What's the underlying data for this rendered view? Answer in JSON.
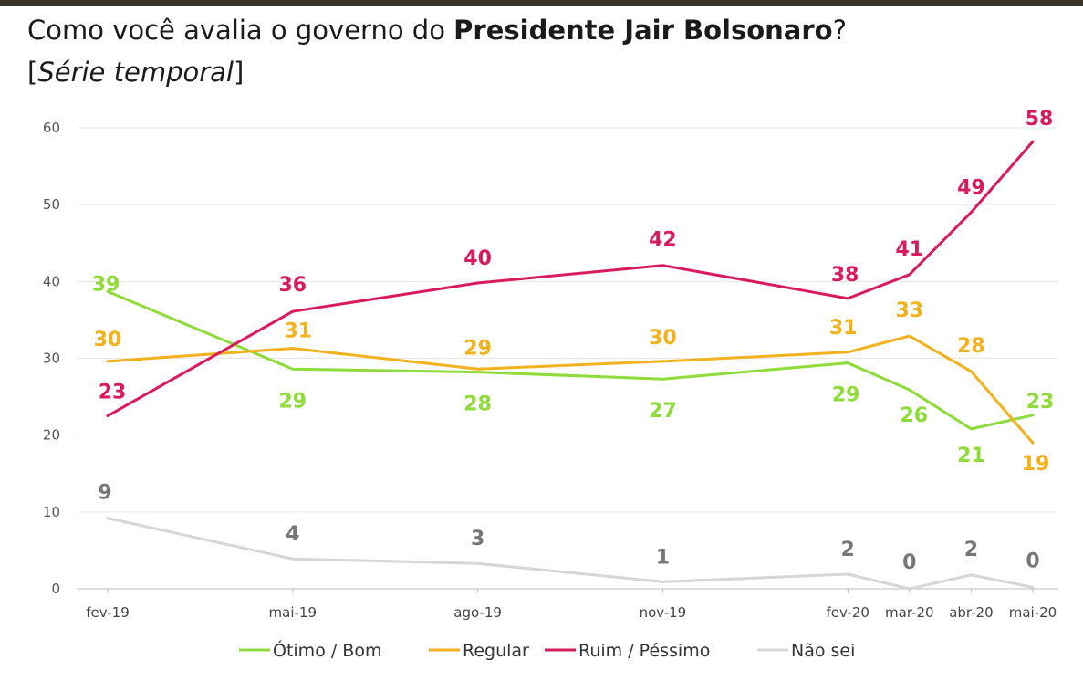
{
  "title": {
    "prefix": "Como você avalia o governo do ",
    "bold": "Presidente Jair Bolsonaro",
    "suffix": "?"
  },
  "subtitle": {
    "open": "[",
    "italic": "Série temporal",
    "close": "]"
  },
  "chart_data": {
    "type": "line",
    "categories": [
      "fev-19",
      "mai-19",
      "ago-19",
      "nov-19",
      "fev-20",
      "mar-20",
      "abr-20",
      "mai-20"
    ],
    "x_index": [
      0,
      3,
      6,
      9,
      12,
      13,
      14,
      15
    ],
    "ylim": [
      0,
      60
    ],
    "yticks": [
      0,
      10,
      20,
      30,
      40,
      50,
      60
    ],
    "grid": true,
    "legend_position": "bottom",
    "series": [
      {
        "key": "otimo",
        "name": "Ótimo / Bom",
        "color": "#8edb3a",
        "values": [
          39,
          29,
          28,
          27,
          29,
          26,
          21,
          23
        ],
        "plot_values": [
          38.7,
          28.6,
          28.2,
          27.3,
          29.4,
          25.9,
          20.8,
          22.6
        ],
        "labels": [
          "39",
          "29",
          "28",
          "27",
          "29",
          "26",
          "21",
          "23"
        ]
      },
      {
        "key": "regular",
        "name": "Regular",
        "color": "#f2b11d",
        "values": [
          30,
          31,
          29,
          30,
          31,
          33,
          28,
          19
        ],
        "plot_values": [
          29.6,
          31.3,
          28.6,
          29.6,
          30.8,
          32.9,
          28.3,
          19.0
        ],
        "labels": [
          "30",
          "31",
          "29",
          "30",
          "31",
          "33",
          "28",
          "19"
        ]
      },
      {
        "key": "ruim",
        "name": "Ruim / Péssimo",
        "color": "#d81b5d",
        "values": [
          23,
          36,
          40,
          42,
          38,
          41,
          49,
          58
        ],
        "plot_values": [
          22.5,
          36.1,
          39.8,
          42.1,
          37.8,
          40.9,
          49.0,
          58.2
        ],
        "labels": [
          "23",
          "36",
          "40",
          "42",
          "38",
          "41",
          "49",
          "58"
        ]
      },
      {
        "key": "naosei",
        "name": "Não sei",
        "color": "#d6d6d6",
        "values": [
          9,
          4,
          3,
          1,
          2,
          0,
          2,
          0
        ],
        "plot_values": [
          9.2,
          3.9,
          3.3,
          0.9,
          1.9,
          0.0,
          1.8,
          0.2
        ],
        "labels": [
          "9",
          "4",
          "3",
          "1",
          "2",
          "0",
          "2",
          "0"
        ]
      }
    ]
  },
  "label_colors": {
    "otimo": "#8edb3a",
    "regular": "#f2b11d",
    "ruim": "#d81b5d",
    "naosei": "#777777"
  }
}
